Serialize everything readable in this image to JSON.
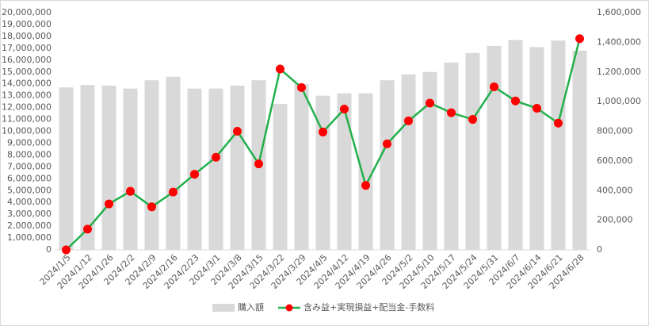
{
  "chart_data": {
    "type": "bar-line",
    "categories": [
      "2024/1/5",
      "2024/1/12",
      "2024/1/26",
      "2024/2/2",
      "2024/2/9",
      "2024/2/16",
      "2024/2/23",
      "2024/3/1",
      "2024/3/8",
      "2024/3/15",
      "2024/3/22",
      "2024/3/29",
      "2024/4/5",
      "2024/4/12",
      "2024/4/19",
      "2024/4/26",
      "2024/5/2",
      "2024/5/10",
      "2024/5/17",
      "2024/5/24",
      "2024/5/31",
      "2024/6/7",
      "2024/6/14",
      "2024/6/21",
      "2024/6/28"
    ],
    "series": [
      {
        "name": "購入額",
        "type": "bar",
        "color": "#d9d9d9",
        "values": [
          13700000,
          13900000,
          13850000,
          13600000,
          14300000,
          14600000,
          13600000,
          13600000,
          13850000,
          14300000,
          12300000,
          14000000,
          13000000,
          13200000,
          13200000,
          14300000,
          14800000,
          15000000,
          15800000,
          16600000,
          17200000,
          17700000,
          17100000,
          17650000,
          16800000
        ]
      },
      {
        "name": "含み益+実現損益+配当金-手数料",
        "type": "line",
        "axis": "y2",
        "color": "#22b04b",
        "marker_color": "#ff0000",
        "values": [
          0,
          140000,
          310000,
          395000,
          290000,
          390000,
          510000,
          625000,
          800000,
          580000,
          1220000,
          1095000,
          795000,
          950000,
          435000,
          715000,
          870000,
          990000,
          925000,
          880000,
          1100000,
          1005000,
          955000,
          855000,
          1425000
        ]
      }
    ],
    "ylim": [
      0,
      20000000
    ],
    "yticks": [
      0,
      {
        "value": 1000000,
        "label": "1,000,000"
      },
      {
        "value": 2000000,
        "label": "2,000,000"
      },
      {
        "value": 3000000,
        "label": "3,000,000"
      },
      {
        "value": 4000000,
        "label": "4,000,000"
      },
      {
        "value": 5000000,
        "label": "5,000,000"
      },
      {
        "value": 6000000,
        "label": "6,000,000"
      },
      {
        "value": 7000000,
        "label": "7,000,000"
      },
      {
        "value": 8000000,
        "label": "8,000,000"
      },
      {
        "value": 9000000,
        "label": "9,000,000"
      },
      {
        "value": 10000000,
        "label": "10,000,000"
      },
      {
        "value": 11000000,
        "label": "11,000,000"
      },
      {
        "value": 12000000,
        "label": "12,000,000"
      },
      {
        "value": 13000000,
        "label": "13,000,000"
      },
      {
        "value": 14000000,
        "label": "14,000,000"
      },
      {
        "value": 15000000,
        "label": "15,000,000"
      },
      {
        "value": 16000000,
        "label": "16,000,000"
      },
      {
        "value": 17000000,
        "label": "17,000,000"
      },
      {
        "value": 18000000,
        "label": "18,000,000"
      },
      {
        "value": 19000000,
        "label": "19,000,000"
      },
      {
        "value": 20000000,
        "label": "20,000,000"
      }
    ],
    "y2lim": [
      0,
      1600000
    ],
    "y2ticks": [
      0,
      {
        "value": 200000,
        "label": "200,000"
      },
      {
        "value": 400000,
        "label": "400,000"
      },
      {
        "value": 600000,
        "label": "600,000"
      },
      {
        "value": 800000,
        "label": "800,000"
      },
      {
        "value": 1000000,
        "label": "1,000,000"
      },
      {
        "value": 1200000,
        "label": "1,200,000"
      },
      {
        "value": 1400000,
        "label": "1,400,000"
      },
      {
        "value": 1600000,
        "label": "1,600,000"
      }
    ],
    "legend": "bottom"
  }
}
